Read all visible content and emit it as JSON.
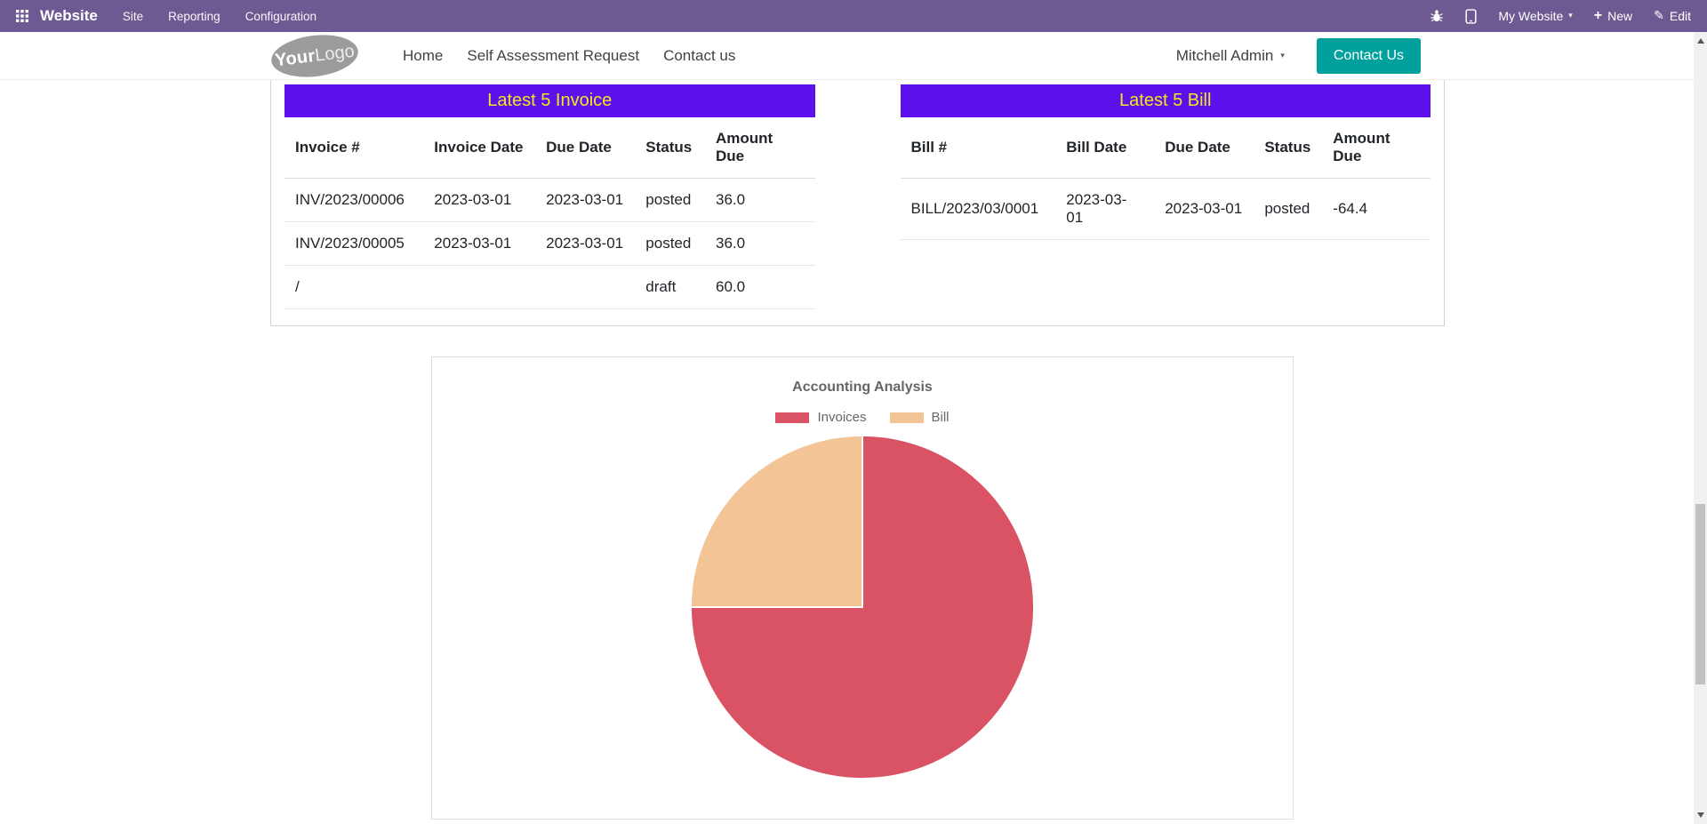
{
  "topbar": {
    "app_name": "Website",
    "menus": [
      "Site",
      "Reporting",
      "Configuration"
    ],
    "my_website_label": "My Website",
    "new_label": "New",
    "edit_label": "Edit"
  },
  "site_header": {
    "logo_your": "Your",
    "logo_logo": "Logo",
    "nav": [
      "Home",
      "Self Assessment Request",
      "Contact us"
    ],
    "user_name": "Mitchell Admin",
    "contact_button": "Contact Us"
  },
  "invoice_table": {
    "title": "Latest 5 Invoice",
    "headers": [
      "Invoice #",
      "Invoice Date",
      "Due Date",
      "Status",
      "Amount Due"
    ],
    "rows": [
      [
        "INV/2023/00006",
        "2023-03-01",
        "2023-03-01",
        "posted",
        "36.0"
      ],
      [
        "INV/2023/00005",
        "2023-03-01",
        "2023-03-01",
        "posted",
        "36.0"
      ],
      [
        "/",
        "",
        "",
        "draft",
        "60.0"
      ]
    ]
  },
  "bill_table": {
    "title": "Latest 5 Bill",
    "headers": [
      "Bill #",
      "Bill Date",
      "Due Date",
      "Status",
      "Amount Due"
    ],
    "rows": [
      [
        "BILL/2023/03/0001",
        "2023-03-01",
        "2023-03-01",
        "posted",
        "-64.4"
      ]
    ]
  },
  "chart_data": {
    "type": "pie",
    "title": "Accounting Analysis",
    "legend_position": "top",
    "values_are": "percent of documents",
    "series": [
      {
        "name": "Invoices",
        "value": 75,
        "color": "#da5364"
      },
      {
        "name": "Bill",
        "value": 25,
        "color": "#f3c496"
      }
    ]
  },
  "colors": {
    "topbar_bg": "#6e5a93",
    "table_band_bg": "#5e10ec",
    "table_band_text": "#f2e71d",
    "primary_button_bg": "#00a09d",
    "chart_text": "#666666"
  }
}
